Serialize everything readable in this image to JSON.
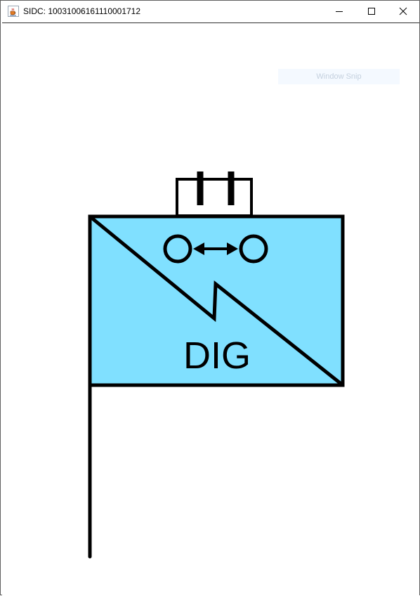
{
  "window": {
    "title": "SIDC: 10031006161110001712",
    "icon": "java-cup-icon",
    "controls": {
      "minimize_icon": "minimize-icon",
      "maximize_icon": "maximize-icon",
      "close_icon": "close-icon"
    }
  },
  "overlay": {
    "snip_label": "Window Snip"
  },
  "symbol": {
    "label": "DIG",
    "fill_color": "#80e0ff",
    "stroke_color": "#000000",
    "icons": [
      "echelon-bars-icon",
      "bidirectional-arrow-icon",
      "diagonal-split-icon",
      "flag-staff-icon"
    ]
  }
}
